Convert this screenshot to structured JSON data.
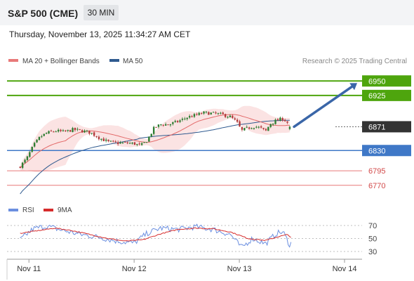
{
  "header": {
    "title": "S&P 500 (CME)",
    "interval": "30 MIN",
    "datetime": "Thursday, November 13, 2025 11:34:27 AM CET"
  },
  "legend": {
    "ma20_label": "MA 20 + Bollinger Bands",
    "ma50_label": "MA 50",
    "credit": "Research © 2025 Trading Central"
  },
  "rsi_legend": {
    "rsi_label": "RSI",
    "ma_label": "9MA"
  },
  "colors": {
    "green": "#4ea50d",
    "blue": "#3f78c7",
    "red_line": "#e87979",
    "current": "#333333",
    "candle_up": "#2e7d32",
    "candle_down": "#b23a3a",
    "ma20": "#e36a6a",
    "ma50": "#2f5a8f",
    "band_fill": "#fbe3e3",
    "rsi": "#6b8fe0",
    "rsi_ma": "#d62b2b",
    "arrow": "#3a66a8"
  },
  "chart_data": [
    {
      "type": "candlestick",
      "title": "S&P 500 (CME)",
      "interval": "30 MIN",
      "ylim": [
        6760,
        6960
      ],
      "x_tick_labels": [
        "Nov 11",
        "Nov 12",
        "Nov 13",
        "Nov 14"
      ],
      "levels": [
        {
          "value": 6950,
          "label": "6950",
          "kind": "resistance",
          "color": "#4ea50d"
        },
        {
          "value": 6925,
          "label": "6925",
          "kind": "resistance",
          "color": "#4ea50d"
        },
        {
          "value": 6871,
          "label": "6871",
          "kind": "current",
          "color": "#333333"
        },
        {
          "value": 6830,
          "label": "6830",
          "kind": "pivot",
          "color": "#3f78c7"
        },
        {
          "value": 6795,
          "label": "6795",
          "kind": "support",
          "color": "#e87979"
        },
        {
          "value": 6770,
          "label": "6770",
          "kind": "support",
          "color": "#e87979"
        }
      ],
      "close_path": [
        {
          "x": "Nov 10 22:00",
          "y": 6803
        },
        {
          "x": "Nov 10 23:30",
          "y": 6816
        },
        {
          "x": "Nov 11 01:00",
          "y": 6838
        },
        {
          "x": "Nov 11 02:30",
          "y": 6853
        },
        {
          "x": "Nov 11 04:00",
          "y": 6860
        },
        {
          "x": "Nov 11 06:00",
          "y": 6864
        },
        {
          "x": "Nov 11 08:00",
          "y": 6862
        },
        {
          "x": "Nov 11 10:00",
          "y": 6866
        },
        {
          "x": "Nov 11 12:00",
          "y": 6864
        },
        {
          "x": "Nov 11 14:00",
          "y": 6861
        },
        {
          "x": "Nov 11 16:00",
          "y": 6852
        },
        {
          "x": "Nov 11 18:00",
          "y": 6845
        },
        {
          "x": "Nov 11 20:00",
          "y": 6843
        },
        {
          "x": "Nov 11 22:00",
          "y": 6843
        },
        {
          "x": "Nov 12 00:00",
          "y": 6842
        },
        {
          "x": "Nov 12 01:30",
          "y": 6838
        },
        {
          "x": "Nov 12 03:00",
          "y": 6848
        },
        {
          "x": "Nov 12 04:30",
          "y": 6868
        },
        {
          "x": "Nov 12 06:00",
          "y": 6875
        },
        {
          "x": "Nov 12 08:00",
          "y": 6875
        },
        {
          "x": "Nov 12 10:00",
          "y": 6880
        },
        {
          "x": "Nov 12 12:00",
          "y": 6887
        },
        {
          "x": "Nov 12 14:00",
          "y": 6891
        },
        {
          "x": "Nov 12 16:00",
          "y": 6895
        },
        {
          "x": "Nov 12 18:00",
          "y": 6894
        },
        {
          "x": "Nov 12 20:00",
          "y": 6892
        },
        {
          "x": "Nov 12 22:00",
          "y": 6888
        },
        {
          "x": "Nov 12 23:30",
          "y": 6878
        },
        {
          "x": "Nov 13 00:30",
          "y": 6864
        },
        {
          "x": "Nov 13 02:00",
          "y": 6869
        },
        {
          "x": "Nov 13 03:30",
          "y": 6872
        },
        {
          "x": "Nov 13 05:00",
          "y": 6868
        },
        {
          "x": "Nov 13 06:00",
          "y": 6863
        },
        {
          "x": "Nov 13 07:00",
          "y": 6876
        },
        {
          "x": "Nov 13 08:30",
          "y": 6882
        },
        {
          "x": "Nov 13 10:00",
          "y": 6885
        },
        {
          "x": "Nov 13 11:00",
          "y": 6878
        },
        {
          "x": "Nov 13 11:30",
          "y": 6865
        },
        {
          "x": "Nov 13 12:00",
          "y": 6871
        }
      ],
      "projection": {
        "from": 6871,
        "to": 6950
      }
    },
    {
      "type": "line",
      "series": [
        {
          "name": "RSI"
        },
        {
          "name": "9MA"
        }
      ],
      "ylim": [
        20,
        80
      ],
      "y_ticks": [
        70,
        50,
        30
      ],
      "rsi_path": [
        {
          "x": "Nov 10 22:00",
          "y": 48
        },
        {
          "x": "Nov 11 01:00",
          "y": 65
        },
        {
          "x": "Nov 11 04:00",
          "y": 69
        },
        {
          "x": "Nov 11 08:00",
          "y": 62
        },
        {
          "x": "Nov 11 12:00",
          "y": 56
        },
        {
          "x": "Nov 11 16:00",
          "y": 52
        },
        {
          "x": "Nov 11 20:00",
          "y": 46
        },
        {
          "x": "Nov 12 00:00",
          "y": 43
        },
        {
          "x": "Nov 12 03:00",
          "y": 58
        },
        {
          "x": "Nov 12 06:00",
          "y": 66
        },
        {
          "x": "Nov 12 10:00",
          "y": 64
        },
        {
          "x": "Nov 12 14:00",
          "y": 68
        },
        {
          "x": "Nov 12 18:00",
          "y": 64
        },
        {
          "x": "Nov 12 22:00",
          "y": 56
        },
        {
          "x": "Nov 13 00:30",
          "y": 36
        },
        {
          "x": "Nov 13 03:00",
          "y": 50
        },
        {
          "x": "Nov 13 06:00",
          "y": 42
        },
        {
          "x": "Nov 13 08:30",
          "y": 58
        },
        {
          "x": "Nov 13 10:00",
          "y": 60
        },
        {
          "x": "Nov 13 11:30",
          "y": 40
        },
        {
          "x": "Nov 13 12:00",
          "y": 46
        }
      ],
      "ma_path": [
        {
          "x": "Nov 10 22:00",
          "y": 58
        },
        {
          "x": "Nov 11 02:00",
          "y": 62
        },
        {
          "x": "Nov 11 06:00",
          "y": 66
        },
        {
          "x": "Nov 11 10:00",
          "y": 62
        },
        {
          "x": "Nov 11 14:00",
          "y": 56
        },
        {
          "x": "Nov 11 18:00",
          "y": 50
        },
        {
          "x": "Nov 11 22:00",
          "y": 46
        },
        {
          "x": "Nov 12 02:00",
          "y": 48
        },
        {
          "x": "Nov 12 06:00",
          "y": 57
        },
        {
          "x": "Nov 12 10:00",
          "y": 64
        },
        {
          "x": "Nov 12 14:00",
          "y": 66
        },
        {
          "x": "Nov 12 18:00",
          "y": 65
        },
        {
          "x": "Nov 12 22:00",
          "y": 60
        },
        {
          "x": "Nov 13 02:00",
          "y": 50
        },
        {
          "x": "Nov 13 06:00",
          "y": 47
        },
        {
          "x": "Nov 13 09:00",
          "y": 53
        },
        {
          "x": "Nov 13 11:00",
          "y": 56
        },
        {
          "x": "Nov 13 12:00",
          "y": 51
        }
      ]
    }
  ]
}
